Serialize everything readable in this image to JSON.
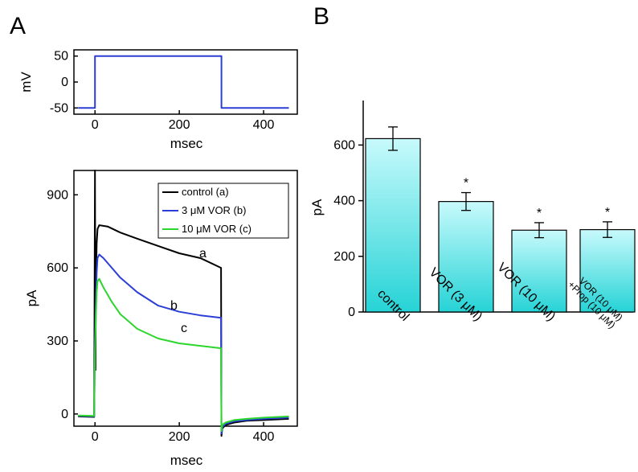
{
  "panel_a_label": "A",
  "panel_b_label": "B",
  "chart_data": [
    {
      "id": "A-top",
      "type": "line",
      "xlabel": "msec",
      "ylabel": "mV",
      "xlim": [
        -50,
        480
      ],
      "ylim": [
        -62,
        62
      ],
      "xticks": [
        0,
        200,
        400
      ],
      "yticks": [
        -50,
        0,
        50
      ],
      "series": [
        {
          "color": "#2b3fd6",
          "x": [
            -40,
            0,
            0,
            300,
            300,
            460
          ],
          "y": [
            -50,
            -50,
            50,
            50,
            -50,
            -50
          ]
        }
      ]
    },
    {
      "id": "A-bottom",
      "type": "line",
      "xlabel": "msec",
      "ylabel": "pA",
      "xlim": [
        -50,
        480
      ],
      "ylim": [
        -50,
        1000
      ],
      "xticks": [
        0,
        200,
        400
      ],
      "yticks": [
        0,
        300,
        600,
        900
      ],
      "legend_position": "top-right",
      "series": [
        {
          "name": "control (a)",
          "label": "a",
          "color": "#000000",
          "x": [
            -40,
            -2,
            0,
            1,
            2,
            4,
            6,
            10,
            30,
            60,
            100,
            150,
            200,
            250,
            299,
            300,
            302,
            310,
            330,
            360,
            400,
            460
          ],
          "y": [
            -10,
            -12,
            1000,
            180,
            500,
            700,
            760,
            775,
            770,
            745,
            720,
            690,
            660,
            640,
            600,
            -90,
            -60,
            -45,
            -35,
            -28,
            -25,
            -20
          ]
        },
        {
          "name": "3 μM VOR (b)",
          "label": "b",
          "color": "#2b3fd6",
          "x": [
            -40,
            -2,
            0,
            2,
            4,
            6,
            10,
            20,
            40,
            60,
            80,
            100,
            150,
            200,
            250,
            299,
            300,
            302,
            310,
            330,
            360,
            400,
            460
          ],
          "y": [
            -8,
            -10,
            300,
            450,
            580,
            640,
            655,
            640,
            600,
            560,
            530,
            500,
            445,
            420,
            405,
            395,
            -80,
            -55,
            -40,
            -30,
            -25,
            -20,
            -15
          ]
        },
        {
          "name": "10 μM VOR (c)",
          "label": "c",
          "color": "#2cd62c",
          "x": [
            -40,
            -2,
            0,
            2,
            4,
            6,
            10,
            20,
            40,
            60,
            80,
            100,
            150,
            200,
            250,
            299,
            300,
            302,
            310,
            330,
            360,
            400,
            460
          ],
          "y": [
            -6,
            -8,
            250,
            400,
            500,
            545,
            555,
            520,
            460,
            410,
            380,
            350,
            310,
            290,
            280,
            270,
            -70,
            -45,
            -35,
            -25,
            -20,
            -15,
            -10
          ]
        }
      ],
      "annotations": [
        "a",
        "b",
        "c"
      ]
    },
    {
      "id": "B",
      "type": "bar",
      "ylabel": "pA",
      "ylim": [
        0,
        760
      ],
      "yticks": [
        0,
        200,
        400,
        600
      ],
      "categories": [
        "control",
        "VOR (3 μM)",
        "VOR (10 μM)",
        "VOR (10 μM)+Prop (10 μM)"
      ],
      "category_lines": [
        [
          "control"
        ],
        [
          "VOR (3 μM)"
        ],
        [
          "VOR (10 μM)"
        ],
        [
          "VOR (10 μM)",
          "+Prop (10 μM)"
        ]
      ],
      "values": [
        623,
        397,
        294,
        296
      ],
      "errors": [
        42,
        32,
        27,
        28
      ],
      "significance": [
        "",
        "*",
        "*",
        "*"
      ],
      "bar_gradient": [
        "#c8fafc",
        "#26d3d6"
      ]
    }
  ]
}
